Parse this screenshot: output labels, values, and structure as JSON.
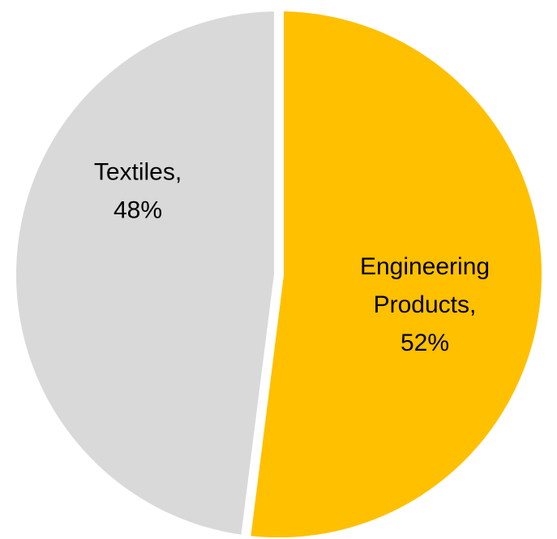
{
  "chart_data": {
    "type": "pie",
    "title": "",
    "slices": [
      {
        "label_lines": [
          "Engineering",
          "Products,",
          "52%"
        ],
        "name": "Engineering Products",
        "value": 52,
        "color": "#FFC000"
      },
      {
        "label_lines": [
          "Textiles,",
          "48%"
        ],
        "name": "Textiles",
        "value": 48,
        "color": "#D9D9D9"
      }
    ],
    "start_angle_deg": 0,
    "direction": "clockwise",
    "legend": "none",
    "separator_color": "#FFFFFF"
  }
}
